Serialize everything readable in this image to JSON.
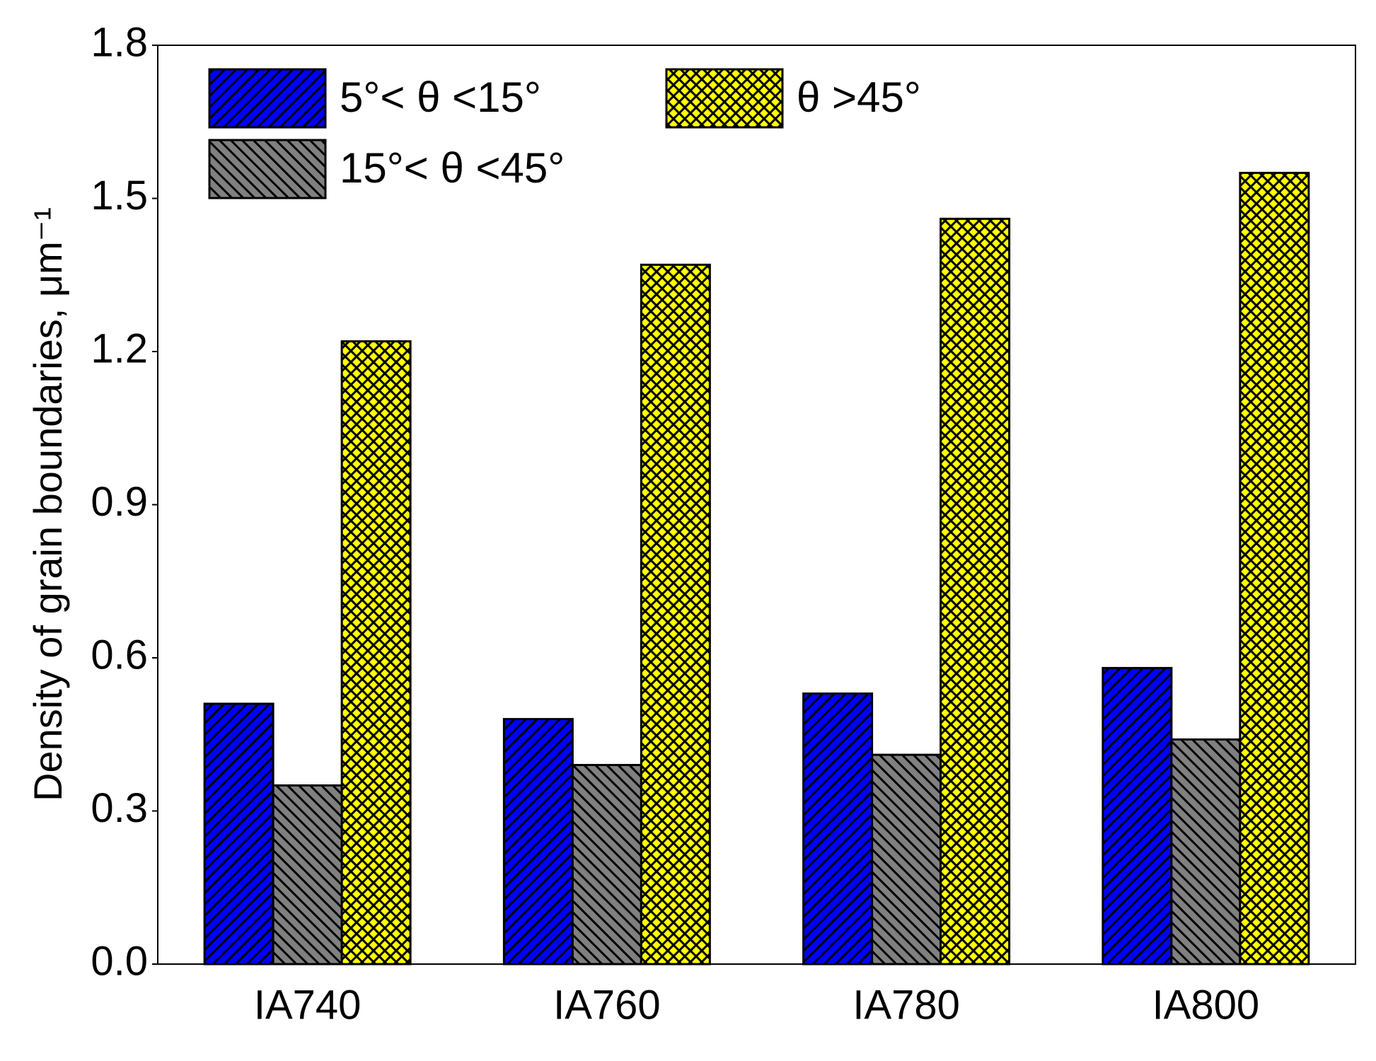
{
  "chart_data": {
    "type": "bar",
    "ylabel": "Density of grain boundaries, μm⁻¹",
    "categories": [
      "IA740",
      "IA760",
      "IA780",
      "IA800"
    ],
    "series": [
      {
        "name": "5°< θ <15°",
        "color": "#0000ff",
        "hatch": "/",
        "values": [
          0.51,
          0.48,
          0.53,
          0.58
        ]
      },
      {
        "name": "15°< θ <45°",
        "color": "#808080",
        "hatch": "\\",
        "values": [
          0.35,
          0.39,
          0.41,
          0.44
        ]
      },
      {
        "name": "θ >45°",
        "color": "#ffff00",
        "hatch": "x",
        "values": [
          1.22,
          1.37,
          1.46,
          1.55
        ]
      }
    ],
    "ylim": [
      0,
      1.8
    ],
    "yticks": [
      {
        "value": 0,
        "label": "0.0"
      },
      0.3,
      0.6,
      0.9,
      1.2,
      1.5,
      1.8
    ],
    "grid": false
  }
}
